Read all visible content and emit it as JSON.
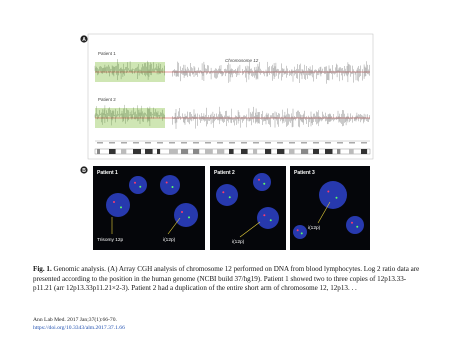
{
  "figure": {
    "panel_a": {
      "label": "A",
      "track_1": "Patient 1",
      "chromosome": "Chromosome 12",
      "track_2": "Patient 2"
    },
    "panel_b": {
      "label": "B",
      "images": [
        {
          "title": "Patient 1",
          "labels": [
            "Trisomy 12p",
            "i(12p)"
          ]
        },
        {
          "title": "Patient 2",
          "labels": [
            "i(12p)"
          ]
        },
        {
          "title": "Patient 3",
          "labels": [
            "i(12p)"
          ]
        }
      ]
    }
  },
  "caption": {
    "number": "Fig. 1.",
    "text": "Genomic analysis. (A) Array CGH analysis of chromosome 12 performed on DNA from blood lymphocytes. Log 2 ratio data are presented according to the position in the human genome (NCBI build 37/hg19). Patient 1 showed two to three copies of 12p13.33-p11.21 (arr 12p13.33p11.21×2-3). Patient 2 had a duplication of the entire short arm of chromosome 12, 12p13. . ."
  },
  "footer": {
    "journal": "Ann Lab Med. 2017 Jan;37(1):66-70.",
    "doi": "https://doi.org/10.3343/alm.2017.37.1.66"
  }
}
